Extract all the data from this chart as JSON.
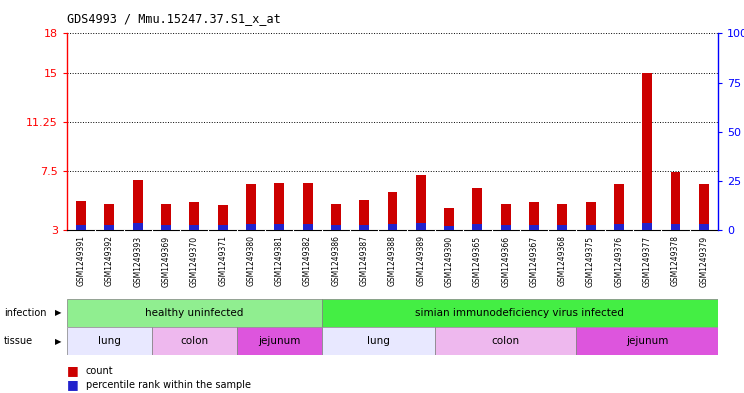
{
  "title": "GDS4993 / Mmu.15247.37.S1_x_at",
  "samples": [
    "GSM1249391",
    "GSM1249392",
    "GSM1249393",
    "GSM1249369",
    "GSM1249370",
    "GSM1249371",
    "GSM1249380",
    "GSM1249381",
    "GSM1249382",
    "GSM1249386",
    "GSM1249387",
    "GSM1249388",
    "GSM1249389",
    "GSM1249390",
    "GSM1249365",
    "GSM1249366",
    "GSM1249367",
    "GSM1249368",
    "GSM1249375",
    "GSM1249376",
    "GSM1249377",
    "GSM1249378",
    "GSM1249379"
  ],
  "count_values": [
    5.2,
    5.0,
    6.8,
    5.0,
    5.1,
    4.9,
    6.5,
    6.6,
    6.6,
    5.0,
    5.3,
    5.9,
    7.2,
    4.7,
    6.2,
    5.0,
    5.1,
    5.0,
    5.1,
    6.5,
    15.0,
    7.4,
    6.5
  ],
  "percentile_values": [
    0.35,
    0.35,
    0.55,
    0.35,
    0.35,
    0.35,
    0.42,
    0.45,
    0.45,
    0.35,
    0.35,
    0.45,
    0.55,
    0.3,
    0.42,
    0.35,
    0.35,
    0.35,
    0.35,
    0.45,
    0.55,
    0.45,
    0.42
  ],
  "yticks_left": [
    3,
    7.5,
    11.25,
    15,
    18
  ],
  "yticks_right": [
    0,
    25,
    50,
    75,
    100
  ],
  "ymin": 3,
  "ymax": 18,
  "bar_color_red": "#cc0000",
  "bar_color_blue": "#2222cc",
  "infection_groups": [
    {
      "label": "healthy uninfected",
      "start": 0,
      "end": 9,
      "color": "#90EE90"
    },
    {
      "label": "simian immunodeficiency virus infected",
      "start": 9,
      "end": 23,
      "color": "#44EE44"
    }
  ],
  "tissue_groups": [
    {
      "label": "lung",
      "start": 0,
      "end": 3,
      "color": "#E8E8FF"
    },
    {
      "label": "colon",
      "start": 3,
      "end": 6,
      "color": "#EEB8EE"
    },
    {
      "label": "jejunum",
      "start": 6,
      "end": 9,
      "color": "#DD55DD"
    },
    {
      "label": "lung",
      "start": 9,
      "end": 13,
      "color": "#E8E8FF"
    },
    {
      "label": "colon",
      "start": 13,
      "end": 18,
      "color": "#EEB8EE"
    },
    {
      "label": "jejunum",
      "start": 18,
      "end": 23,
      "color": "#DD55DD"
    }
  ]
}
